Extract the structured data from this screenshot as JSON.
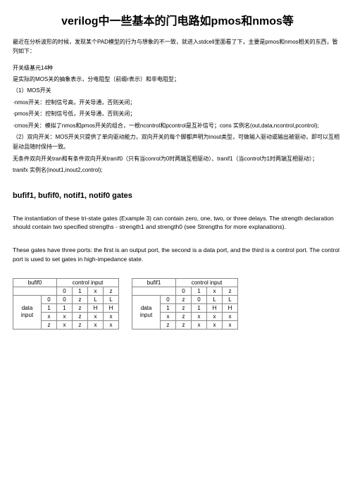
{
  "title": "verilog中一些基本的门电路如pmos和nmos等",
  "intro": "最近在分析波形的时候，发现某个PAD模型的行为与想象的不一致，就进入stdcell里面看了下，主要是pmos和nmos相关的东西，暂列如下：",
  "lines": [
    "开关级基元14种",
    "是实际的MOS关的抽象表示，分电阻型（前缀r表示）和非电阻型；",
    "（1）MOS开关",
    "·nmos开关：控制信号高，开关导通，否则关闭；",
    "·pmos开关：控制信号低，开关导通，否则关闭；",
    "·cmos开关：模拟了nmos和pmos开关的组合，一根ncontrol和pcontrol是互补信号；cons 实例名(out,data,ncontrol,pcontrol);",
    "（2）双向开关：MOS开关只提供了单向驱动能力，双向开关的每个脚都声明为inout类型，可做输入驱动或输出被驱动，即可以互相驱动且随时保持一致。",
    "无条件双向开关tran和有条件双向开关tranif0（只有当conrol为0时两端互相驱动）、tranif1（当control为1时两端互相驱动）；",
    "tranifx 实例名(inout1,inout2,control);"
  ],
  "heading": "bufif1, bufif0, notif1, notif0 gates",
  "para1": "The instantiation of these tri-state gates (Example 3) can contain zero, one, two, or three delays. The strength declaration should contain two specified strengths - strength1 and strength0 (see Strengths for more explanations).",
  "para2": "These gates have three ports: the first is an output port, the second is a data port, and the third is a control port. The control port is used to set gates in high-impedance state.",
  "table1": {
    "name": "bufif0",
    "header2": "control input",
    "col_headers": [
      "0",
      "1",
      "x",
      "z"
    ],
    "side_label": "data input",
    "rows": [
      [
        "0",
        "0",
        "z",
        "L",
        "L"
      ],
      [
        "1",
        "1",
        "z",
        "H",
        "H"
      ],
      [
        "x",
        "x",
        "z",
        "x",
        "x"
      ],
      [
        "z",
        "x",
        "z",
        "x",
        "x"
      ]
    ]
  },
  "table2": {
    "name": "bufif1",
    "header2": "control input",
    "col_headers": [
      "0",
      "1",
      "x",
      "z"
    ],
    "side_label": "data input",
    "rows": [
      [
        "0",
        "z",
        "0",
        "L",
        "L"
      ],
      [
        "1",
        "z",
        "1",
        "H",
        "H"
      ],
      [
        "x",
        "z",
        "x",
        "x",
        "x"
      ],
      [
        "z",
        "z",
        "x",
        "x",
        "x"
      ]
    ]
  },
  "style": {
    "title_fontsize": 16,
    "body_fontsize": 8,
    "heading_fontsize": 11,
    "para_fontsize": 8.5,
    "table_fontsize": 8,
    "cell_width_narrow": 22,
    "cell_width_wide": 40,
    "border_color": "#888888"
  }
}
